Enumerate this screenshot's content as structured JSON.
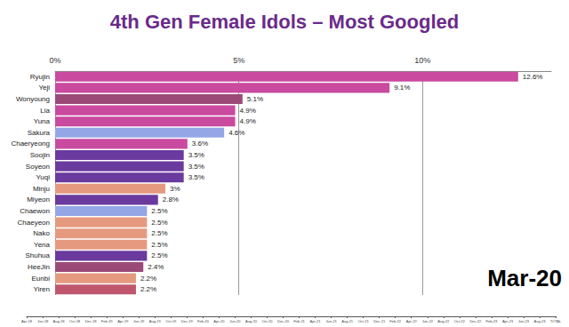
{
  "chart_data": {
    "type": "bar",
    "title": "4th Gen Female Idols – Most Googled",
    "orientation": "horizontal",
    "categories": [
      "Ryujin",
      "Yeji",
      "Wonyoung",
      "Lia",
      "Yuna",
      "Sakura",
      "Chaeryeong",
      "Soojin",
      "Soyeon",
      "Yuqi",
      "Minju",
      "Miyeon",
      "Chaewon",
      "Chaeyeon",
      "Nako",
      "Yena",
      "Shuhua",
      "HeeJin",
      "Eunbi",
      "Yiren"
    ],
    "values": [
      12.6,
      9.1,
      5.1,
      4.9,
      4.9,
      4.6,
      3.6,
      3.5,
      3.5,
      3.5,
      3,
      2.8,
      2.5,
      2.5,
      2.5,
      2.5,
      2.5,
      2.4,
      2.2,
      2.2
    ],
    "value_labels": [
      "12.6%",
      "9.1%",
      "5.1%",
      "4.9%",
      "4.9%",
      "4.6%",
      "3.6%",
      "3.5%",
      "3.5%",
      "3.5%",
      "3%",
      "2.8%",
      "2.5%",
      "2.5%",
      "2.5%",
      "2.5%",
      "2.5%",
      "2.4%",
      "2.2%",
      "2.2%"
    ],
    "colors": [
      "#c94a9f",
      "#c94a9f",
      "#9b4a78",
      "#c94a9f",
      "#c94a9f",
      "#94a6e6",
      "#c94a9f",
      "#6a3a9e",
      "#6a3a9e",
      "#6a3a9e",
      "#e59a80",
      "#6a3a9e",
      "#94a6e6",
      "#e59a80",
      "#e59a80",
      "#e59a80",
      "#6a3a9e",
      "#9b4a78",
      "#e59a80",
      "#c0566e"
    ],
    "xlim": [
      0,
      13.5
    ],
    "xticks": [
      {
        "value": 0,
        "label": "0%"
      },
      {
        "value": 5,
        "label": "5%"
      },
      {
        "value": 10,
        "label": "10%"
      }
    ],
    "grid": true,
    "data_labels": true,
    "annotations": [
      "Mar-20"
    ],
    "timeline": [
      "Apr-18",
      "Jun-18",
      "Aug-18",
      "Oct-18",
      "Dec-18",
      "Feb-19",
      "Apr-19",
      "Jun-19",
      "Aug-19",
      "Oct-19",
      "Dec-19",
      "Feb-20",
      "Apr-20",
      "Jun-20",
      "Aug-20",
      "Oct-20",
      "Dec-20",
      "Feb-21",
      "Apr-21",
      "Jun-21",
      "Aug-21",
      "Oct-21",
      "Dec-21",
      "Feb-22",
      "Apr-22",
      "Jun-22",
      "Aug-22",
      "Oct-22",
      "Dec-22",
      "Feb-23",
      "Apr-23",
      "Jun-23",
      "Aug-23",
      "TOTAL"
    ]
  }
}
